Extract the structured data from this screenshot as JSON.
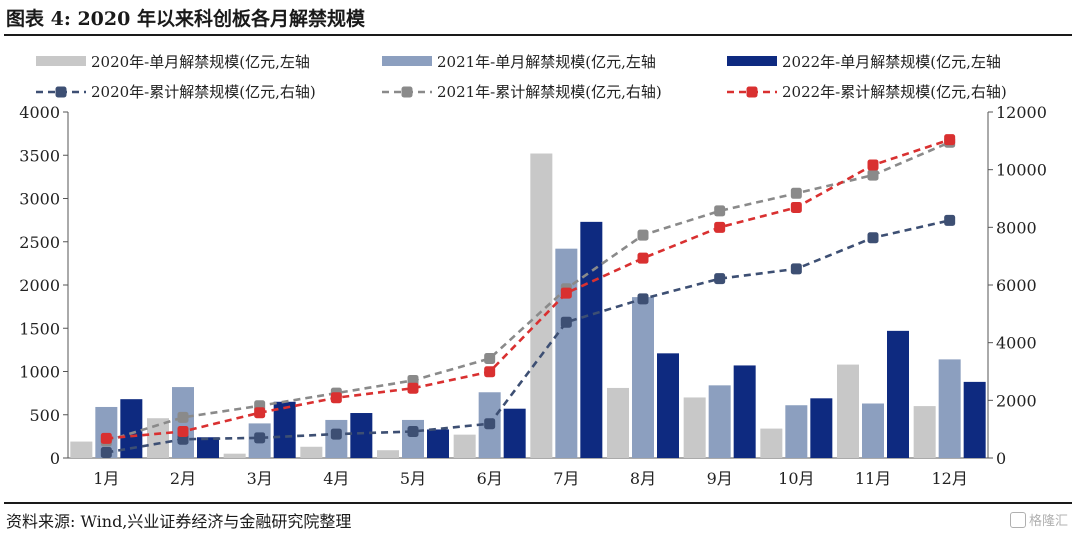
{
  "header": {
    "title": "图表 4:  2020 年以来科创板各月解禁规模"
  },
  "footer": {
    "source": "资料来源:  Wind,兴业证券经济与金融研究院整理",
    "watermark": "格隆汇"
  },
  "colors": {
    "bar_2020": "#c8c8c8",
    "bar_2021": "#8c9fbf",
    "bar_2022": "#0e2a80",
    "line_2020": "#3d4f73",
    "line_2021": "#8a8a8a",
    "line_2022": "#d93030"
  },
  "chart_data": {
    "type": "bar",
    "categories": [
      "1月",
      "2月",
      "3月",
      "4月",
      "5月",
      "6月",
      "7月",
      "8月",
      "9月",
      "10月",
      "11月",
      "12月"
    ],
    "bar_series": [
      {
        "name": "2020年-单月解禁规模(亿元,左轴",
        "axis": "left",
        "values": [
          190,
          460,
          50,
          130,
          90,
          270,
          3520,
          810,
          700,
          340,
          1080,
          600
        ]
      },
      {
        "name": "2021年-单月解禁规模(亿元,左轴",
        "axis": "left",
        "values": [
          590,
          820,
          400,
          440,
          440,
          760,
          2420,
          1860,
          840,
          610,
          630,
          1140
        ]
      },
      {
        "name": "2022年-单月解禁规模(亿元,左轴",
        "axis": "left",
        "values": [
          680,
          240,
          650,
          520,
          330,
          570,
          2730,
          1210,
          1070,
          690,
          1470,
          880
        ]
      }
    ],
    "line_series": [
      {
        "name": "2020年-累计解禁规模(亿元,右轴)",
        "axis": "right",
        "values": [
          190,
          650,
          700,
          830,
          920,
          1190,
          4710,
          5520,
          6220,
          6560,
          7640,
          8240
        ]
      },
      {
        "name": "2021年-累计解禁规模(亿元,右轴)",
        "axis": "right",
        "values": [
          590,
          1410,
          1810,
          2250,
          2690,
          3450,
          5870,
          7730,
          8570,
          9180,
          9810,
          10950
        ]
      },
      {
        "name": "2022年-累计解禁规模(亿元,右轴)",
        "axis": "right",
        "values": [
          680,
          920,
          1570,
          2090,
          2420,
          2990,
          5720,
          6930,
          8000,
          8690,
          10160,
          11040
        ]
      }
    ],
    "y_left": {
      "min": 0,
      "max": 4000,
      "ticks": [
        0,
        500,
        1000,
        1500,
        2000,
        2500,
        3000,
        3500,
        4000
      ]
    },
    "y_right": {
      "min": 0,
      "max": 12000,
      "ticks": [
        0,
        2000,
        4000,
        6000,
        8000,
        10000,
        12000
      ]
    },
    "legend_position": "top",
    "grid": false
  }
}
